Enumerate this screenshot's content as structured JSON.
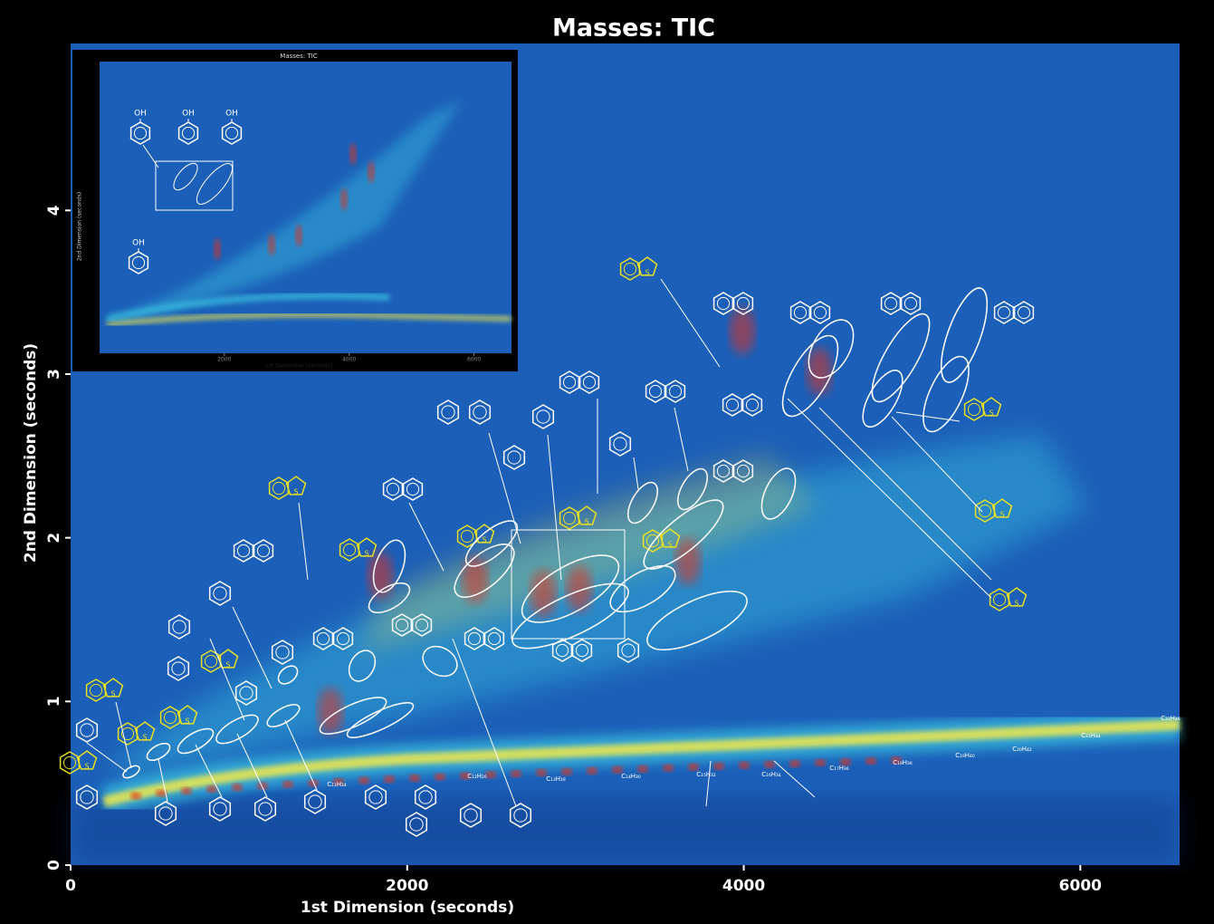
{
  "chart_data": {
    "type": "heatmap",
    "title": "Masses: TIC",
    "x_label": "1st Dimension (seconds)",
    "y_label": "2nd Dimension (seconds)",
    "xlim": [
      0,
      6590
    ],
    "ylim": [
      0,
      5.02
    ],
    "xticks": [
      0,
      2000,
      4000,
      6000
    ],
    "yticks": [
      0,
      1,
      2,
      3,
      4
    ],
    "colormap": [
      "#0a2f7a",
      "#1b5fb8",
      "#3fd6e8",
      "#f2e84a",
      "#e2321e"
    ],
    "annotations": [
      "C₁₁H₂₄",
      "C₁₂H₂₆",
      "C₁₃H₂₈",
      "C₁₄H₃₀",
      "C₁₅H₃₂",
      "C₁₆H₃₄",
      "C₁₇H₃₆",
      "C₁₈H₃₈",
      "C₁₉H₄₀",
      "C₂₀H₄₂",
      "C₂₁H₄₄",
      "C₂₂H₄₆"
    ],
    "structure_labels": [
      "S",
      "S",
      "S",
      "S",
      "S",
      "S",
      "S",
      "S",
      "S",
      "S",
      "S",
      "S",
      "S",
      "S"
    ]
  },
  "inset": {
    "title": "Masses: TIC",
    "x_label": "1st Dimension (seconds)",
    "y_label": "2nd Dimension (seconds)",
    "xlim": [
      0,
      6600
    ],
    "xticks": [
      2000,
      4000,
      6000
    ],
    "labels": [
      "OH",
      "OH",
      "OH",
      "OH"
    ]
  }
}
